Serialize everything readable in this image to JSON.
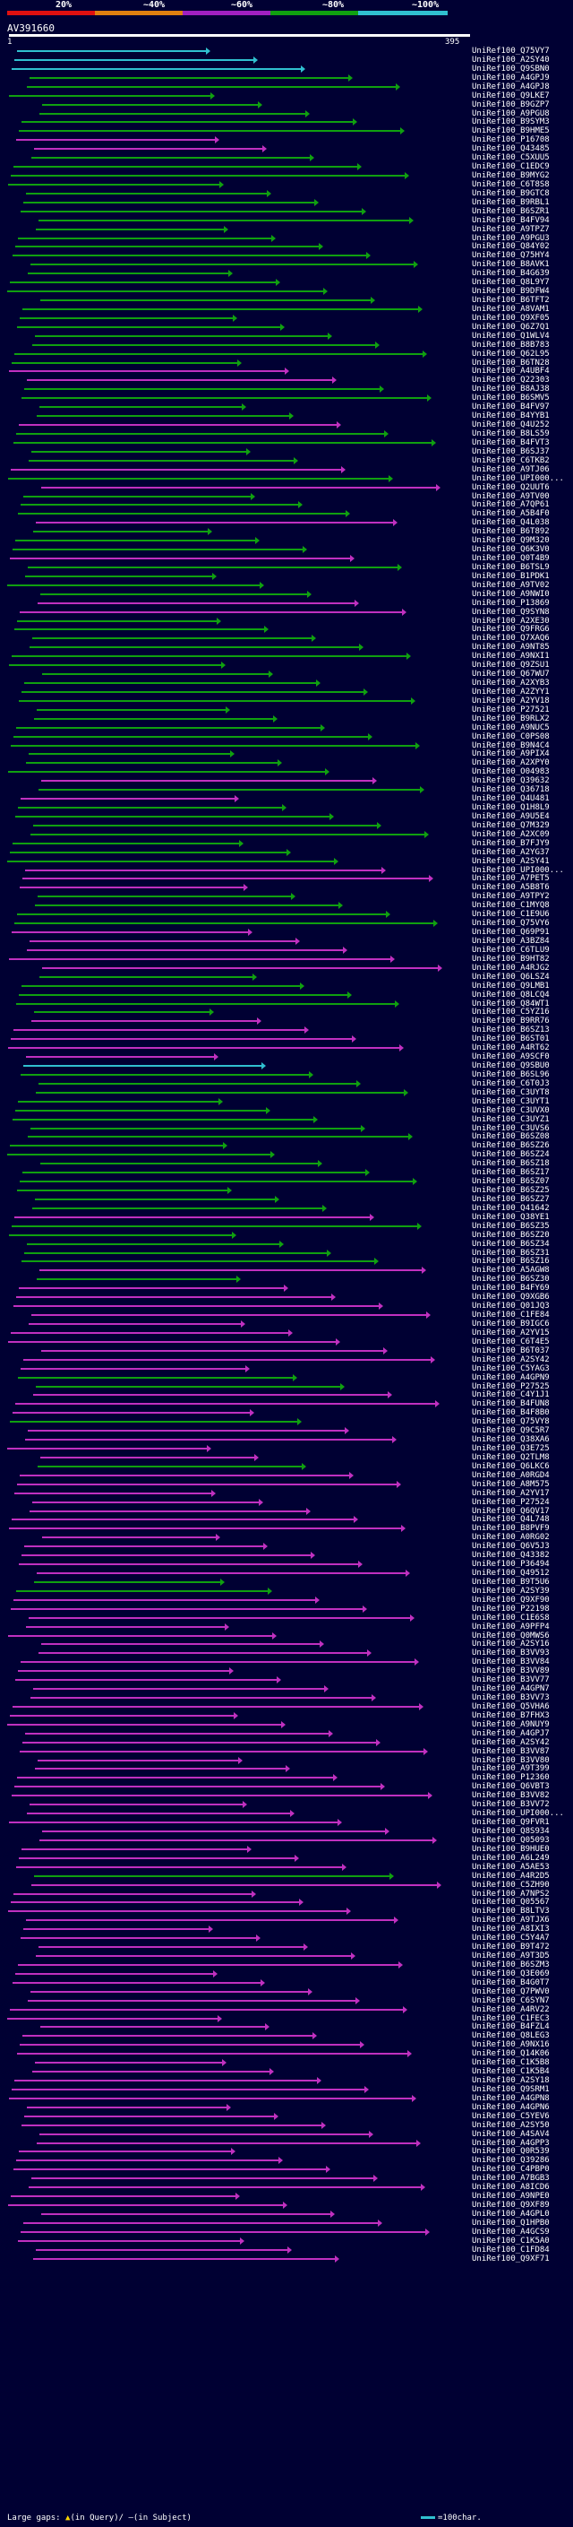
{
  "legend": {
    "labels": [
      "20%",
      "~40%",
      "~60%",
      "~80%",
      "~100%"
    ],
    "colors": [
      "#e01010",
      "#e08010",
      "#a020c0",
      "#10a010",
      "#30c0d0"
    ]
  },
  "query": {
    "id": "AV391660",
    "start": "1",
    "end": "395"
  },
  "hits": [
    {
      "label": "UniRef100_Q75VY7",
      "kind": "cyan"
    },
    {
      "label": "UniRef100_A2SY40",
      "kind": "cyan"
    },
    {
      "label": "UniRef100_Q9SBN0",
      "kind": "cyan"
    },
    {
      "label": "UniRef100_A4GPJ9",
      "kind": "green"
    },
    {
      "label": "UniRef100_A4GPJ8",
      "kind": "green"
    },
    {
      "label": "UniRef100_Q9LKE7",
      "kind": "green"
    },
    {
      "label": "UniRef100_B9GZP7",
      "kind": "green"
    },
    {
      "label": "UniRef100_A9PGU8",
      "kind": "green"
    },
    {
      "label": "UniRef100_B9SYM3",
      "kind": "green"
    },
    {
      "label": "UniRef100_B9HME5",
      "kind": "green"
    },
    {
      "label": "UniRef100_P16708",
      "kind": "magenta"
    },
    {
      "label": "UniRef100_Q43485",
      "kind": "magenta"
    },
    {
      "label": "UniRef100_C5XUU5",
      "kind": "green"
    },
    {
      "label": "UniRef100_C1EDC9",
      "kind": "green"
    },
    {
      "label": "UniRef100_B9MYG2",
      "kind": "green"
    },
    {
      "label": "UniRef100_C6T8S8",
      "kind": "green"
    },
    {
      "label": "UniRef100_B9GTC8",
      "kind": "green"
    },
    {
      "label": "UniRef100_B9RBL1",
      "kind": "green"
    },
    {
      "label": "UniRef100_B6SZR1",
      "kind": "green"
    },
    {
      "label": "UniRef100_B4FV94",
      "kind": "green"
    },
    {
      "label": "UniRef100_A9TPZ7",
      "kind": "green"
    },
    {
      "label": "UniRef100_A9PGU3",
      "kind": "green"
    },
    {
      "label": "UniRef100_Q84Y02",
      "kind": "green"
    },
    {
      "label": "UniRef100_Q75HY4",
      "kind": "green"
    },
    {
      "label": "UniRef100_B8AVK1",
      "kind": "green"
    },
    {
      "label": "UniRef100_B4G639",
      "kind": "green"
    },
    {
      "label": "UniRef100_Q8L9Y7",
      "kind": "green"
    },
    {
      "label": "UniRef100_B9DFW4",
      "kind": "green"
    },
    {
      "label": "UniRef100_B6TFT2",
      "kind": "green"
    },
    {
      "label": "UniRef100_A8VAM1",
      "kind": "green"
    },
    {
      "label": "UniRef100_Q9XF05",
      "kind": "green"
    },
    {
      "label": "UniRef100_Q6Z7Q1",
      "kind": "green"
    },
    {
      "label": "UniRef100_Q1WLV4",
      "kind": "green"
    },
    {
      "label": "UniRef100_B8B783",
      "kind": "green"
    },
    {
      "label": "UniRef100_Q62L95",
      "kind": "green"
    },
    {
      "label": "UniRef100_B6TN28",
      "kind": "green"
    },
    {
      "label": "UniRef100_A4UBF4",
      "kind": "magenta"
    },
    {
      "label": "UniRef100_Q22303",
      "kind": "magenta"
    },
    {
      "label": "UniRef100_B8AJ38",
      "kind": "green"
    },
    {
      "label": "UniRef100_B6SMV5",
      "kind": "green"
    },
    {
      "label": "UniRef100_B4FV97",
      "kind": "green"
    },
    {
      "label": "UniRef100_B4YYB1",
      "kind": "green"
    },
    {
      "label": "UniRef100_Q4U252",
      "kind": "magenta"
    },
    {
      "label": "UniRef100_B8LS59",
      "kind": "green"
    },
    {
      "label": "UniRef100_B4FVT3",
      "kind": "green"
    },
    {
      "label": "UniRef100_B6SJ37",
      "kind": "green"
    },
    {
      "label": "UniRef100_C6TKB2",
      "kind": "green"
    },
    {
      "label": "UniRef100_A9TJ06",
      "kind": "magenta"
    },
    {
      "label": "UniRef100_UPI000...",
      "kind": "green"
    },
    {
      "label": "UniRef100_Q2UUT6",
      "kind": "magenta"
    },
    {
      "label": "UniRef100_A9TV00",
      "kind": "green"
    },
    {
      "label": "UniRef100_A7QP61",
      "kind": "green"
    },
    {
      "label": "UniRef100_A5B4F0",
      "kind": "green"
    },
    {
      "label": "UniRef100_Q4L038",
      "kind": "magenta"
    },
    {
      "label": "UniRef100_B6T892",
      "kind": "green"
    },
    {
      "label": "UniRef100_Q9M320",
      "kind": "green"
    },
    {
      "label": "UniRef100_Q6K3V0",
      "kind": "green"
    },
    {
      "label": "UniRef100_Q0T4B9",
      "kind": "magenta"
    },
    {
      "label": "UniRef100_B6TSL9",
      "kind": "green"
    },
    {
      "label": "UniRef100_B1PDK1",
      "kind": "green"
    },
    {
      "label": "UniRef100_A9TV02",
      "kind": "green"
    },
    {
      "label": "UniRef100_A9NWI0",
      "kind": "green"
    },
    {
      "label": "UniRef100_P13869",
      "kind": "magenta"
    },
    {
      "label": "UniRef100_Q9SYN8",
      "kind": "magenta"
    },
    {
      "label": "UniRef100_A2XE30",
      "kind": "green"
    },
    {
      "label": "UniRef100_Q9FRG6",
      "kind": "green"
    },
    {
      "label": "UniRef100_Q7XAQ6",
      "kind": "green"
    },
    {
      "label": "UniRef100_A9NT85",
      "kind": "green"
    },
    {
      "label": "UniRef100_A9NXI1",
      "kind": "green"
    },
    {
      "label": "UniRef100_Q9ZSU1",
      "kind": "green"
    },
    {
      "label": "UniRef100_Q67WU7",
      "kind": "green"
    },
    {
      "label": "UniRef100_A2XYB3",
      "kind": "green"
    },
    {
      "label": "UniRef100_A2ZYY1",
      "kind": "green"
    },
    {
      "label": "UniRef100_A2YV18",
      "kind": "green"
    },
    {
      "label": "UniRef100_P27521",
      "kind": "green"
    },
    {
      "label": "UniRef100_B9RLX2",
      "kind": "green"
    },
    {
      "label": "UniRef100_A9NUC5",
      "kind": "green"
    },
    {
      "label": "UniRef100_C0PS08",
      "kind": "green"
    },
    {
      "label": "UniRef100_B9N4C4",
      "kind": "green"
    },
    {
      "label": "UniRef100_A9PIX4",
      "kind": "green"
    },
    {
      "label": "UniRef100_A2XPY0",
      "kind": "green"
    },
    {
      "label": "UniRef100_O04983",
      "kind": "green"
    },
    {
      "label": "UniRef100_Q39632",
      "kind": "magenta"
    },
    {
      "label": "UniRef100_Q36718",
      "kind": "green"
    },
    {
      "label": "UniRef100_Q4U481",
      "kind": "magenta"
    },
    {
      "label": "UniRef100_Q1H8L9",
      "kind": "green"
    },
    {
      "label": "UniRef100_A9U5E4",
      "kind": "green"
    },
    {
      "label": "UniRef100_Q7M329",
      "kind": "green"
    },
    {
      "label": "UniRef100_A2XC09",
      "kind": "green"
    },
    {
      "label": "UniRef100_B7FJY9",
      "kind": "green"
    },
    {
      "label": "UniRef100_A2YG37",
      "kind": "green"
    },
    {
      "label": "UniRef100_A2SY41",
      "kind": "green"
    },
    {
      "label": "UniRef100_UPI000...",
      "kind": "magenta"
    },
    {
      "label": "UniRef100_A7PET5",
      "kind": "magenta"
    },
    {
      "label": "UniRef100_A5B8T6",
      "kind": "magenta"
    },
    {
      "label": "UniRef100_A9TPY2",
      "kind": "green"
    },
    {
      "label": "UniRef100_C1MYQ8",
      "kind": "green"
    },
    {
      "label": "UniRef100_C1E9U6",
      "kind": "green"
    },
    {
      "label": "UniRef100_Q75VY6",
      "kind": "green"
    },
    {
      "label": "UniRef100_Q69P91",
      "kind": "magenta"
    },
    {
      "label": "UniRef100_A3BZ84",
      "kind": "magenta"
    },
    {
      "label": "UniRef100_C6TLU9",
      "kind": "magenta"
    },
    {
      "label": "UniRef100_B9HT82",
      "kind": "magenta"
    },
    {
      "label": "UniRef100_A4RJG2",
      "kind": "magenta"
    },
    {
      "label": "UniRef100_Q6LSZ4",
      "kind": "green"
    },
    {
      "label": "UniRef100_Q9LMB1",
      "kind": "green"
    },
    {
      "label": "UniRef100_Q8LCQ4",
      "kind": "green"
    },
    {
      "label": "UniRef100_Q84WT1",
      "kind": "green"
    },
    {
      "label": "UniRef100_C5YZ16",
      "kind": "green"
    },
    {
      "label": "UniRef100_B9RR76",
      "kind": "magenta"
    },
    {
      "label": "UniRef100_B6SZ13",
      "kind": "magenta"
    },
    {
      "label": "UniRef100_B6ST01",
      "kind": "magenta"
    },
    {
      "label": "UniRef100_A4RT62",
      "kind": "magenta"
    },
    {
      "label": "UniRef100_A9SCF0",
      "kind": "magenta"
    },
    {
      "label": "UniRef100_Q9SBU0",
      "kind": "cyan"
    },
    {
      "label": "UniRef100_B6SL96",
      "kind": "green"
    },
    {
      "label": "UniRef100_C6T0J3",
      "kind": "green"
    },
    {
      "label": "UniRef100_C3UYT8",
      "kind": "green"
    },
    {
      "label": "UniRef100_C3UYT1",
      "kind": "green"
    },
    {
      "label": "UniRef100_C3UVX0",
      "kind": "green"
    },
    {
      "label": "UniRef100_C3UYZ1",
      "kind": "green"
    },
    {
      "label": "UniRef100_C3UVS6",
      "kind": "green"
    },
    {
      "label": "UniRef100_B6SZ08",
      "kind": "green"
    },
    {
      "label": "UniRef100_B6SZ26",
      "kind": "green"
    },
    {
      "label": "UniRef100_B6SZ24",
      "kind": "green"
    },
    {
      "label": "UniRef100_B6SZ18",
      "kind": "green"
    },
    {
      "label": "UniRef100_B6SZ17",
      "kind": "green"
    },
    {
      "label": "UniRef100_B6SZ07",
      "kind": "green"
    },
    {
      "label": "UniRef100_B6SZ25",
      "kind": "green"
    },
    {
      "label": "UniRef100_B6SZ27",
      "kind": "green"
    },
    {
      "label": "UniRef100_Q41642",
      "kind": "green"
    },
    {
      "label": "UniRef100_Q38YE1",
      "kind": "magenta"
    },
    {
      "label": "UniRef100_B6SZ35",
      "kind": "green"
    },
    {
      "label": "UniRef100_B6SZ20",
      "kind": "green"
    },
    {
      "label": "UniRef100_B6SZ34",
      "kind": "green"
    },
    {
      "label": "UniRef100_B6SZ31",
      "kind": "green"
    },
    {
      "label": "UniRef100_B6SZ16",
      "kind": "green"
    },
    {
      "label": "UniRef100_A5AGW8",
      "kind": "magenta"
    },
    {
      "label": "UniRef100_B6SZ30",
      "kind": "green"
    },
    {
      "label": "UniRef100_B4FY69",
      "kind": "magenta"
    },
    {
      "label": "UniRef100_Q9XGB6",
      "kind": "magenta"
    },
    {
      "label": "UniRef100_Q01JQ3",
      "kind": "magenta"
    },
    {
      "label": "UniRef100_C1FE84",
      "kind": "magenta"
    },
    {
      "label": "UniRef100_B9IGC6",
      "kind": "magenta"
    },
    {
      "label": "UniRef100_A2YV15",
      "kind": "magenta"
    },
    {
      "label": "UniRef100_C6T4E5",
      "kind": "magenta"
    },
    {
      "label": "UniRef100_B6T037",
      "kind": "magenta"
    },
    {
      "label": "UniRef100_A2SY42",
      "kind": "magenta"
    },
    {
      "label": "UniRef100_C5YAG3",
      "kind": "magenta"
    },
    {
      "label": "UniRef100_A4GPN9",
      "kind": "green"
    },
    {
      "label": "UniRef100_P27525",
      "kind": "green"
    },
    {
      "label": "UniRef100_C4Y1J1",
      "kind": "magenta"
    },
    {
      "label": "UniRef100_B4FUN8",
      "kind": "magenta"
    },
    {
      "label": "UniRef100_B4F8B0",
      "kind": "magenta"
    },
    {
      "label": "UniRef100_Q75VY8",
      "kind": "green"
    },
    {
      "label": "UniRef100_Q9C5R7",
      "kind": "magenta"
    },
    {
      "label": "UniRef100_Q38XA6",
      "kind": "magenta"
    },
    {
      "label": "UniRef100_Q3E725",
      "kind": "magenta"
    },
    {
      "label": "UniRef100_Q2TLM8",
      "kind": "magenta"
    },
    {
      "label": "UniRef100_Q6LKC6",
      "kind": "green"
    },
    {
      "label": "UniRef100_A0RGD4",
      "kind": "magenta"
    },
    {
      "label": "UniRef100_A8M575",
      "kind": "magenta"
    },
    {
      "label": "UniRef100_A2YV17",
      "kind": "magenta"
    },
    {
      "label": "UniRef100_P27524",
      "kind": "magenta"
    },
    {
      "label": "UniRef100_Q6QV17",
      "kind": "magenta"
    },
    {
      "label": "UniRef100_Q4L748",
      "kind": "magenta"
    },
    {
      "label": "UniRef100_B8PVF9",
      "kind": "magenta"
    },
    {
      "label": "UniRef100_A0RG02",
      "kind": "magenta"
    },
    {
      "label": "UniRef100_Q6V5J3",
      "kind": "magenta"
    },
    {
      "label": "UniRef100_Q43382",
      "kind": "magenta"
    },
    {
      "label": "UniRef100_P36494",
      "kind": "magenta"
    },
    {
      "label": "UniRef100_Q49512",
      "kind": "magenta"
    },
    {
      "label": "UniRef100_B9T5U6",
      "kind": "green"
    },
    {
      "label": "UniRef100_A2SY39",
      "kind": "green"
    },
    {
      "label": "UniRef100_Q9XF90",
      "kind": "magenta"
    },
    {
      "label": "UniRef100_P22198",
      "kind": "magenta"
    },
    {
      "label": "UniRef100_C1E6S8",
      "kind": "magenta"
    },
    {
      "label": "UniRef100_A9PFP4",
      "kind": "magenta"
    },
    {
      "label": "UniRef100_Q0MWS6",
      "kind": "magenta"
    },
    {
      "label": "UniRef100_A2SY16",
      "kind": "magenta"
    },
    {
      "label": "UniRef100_B3VV93",
      "kind": "magenta"
    },
    {
      "label": "UniRef100_B3VV84",
      "kind": "magenta"
    },
    {
      "label": "UniRef100_B3VV89",
      "kind": "magenta"
    },
    {
      "label": "UniRef100_B3VV77",
      "kind": "magenta"
    },
    {
      "label": "UniRef100_A4GPN7",
      "kind": "magenta"
    },
    {
      "label": "UniRef100_B3VV73",
      "kind": "magenta"
    },
    {
      "label": "UniRef100_Q5VHA6",
      "kind": "magenta"
    },
    {
      "label": "UniRef100_B7FHX3",
      "kind": "magenta"
    },
    {
      "label": "UniRef100_A9NUY9",
      "kind": "magenta"
    },
    {
      "label": "UniRef100_A4GPJ7",
      "kind": "magenta"
    },
    {
      "label": "UniRef100_A2SY42",
      "kind": "magenta"
    },
    {
      "label": "UniRef100_B3VV87",
      "kind": "magenta"
    },
    {
      "label": "UniRef100_B3VV80",
      "kind": "magenta"
    },
    {
      "label": "UniRef100_A9T399",
      "kind": "magenta"
    },
    {
      "label": "UniRef100_P12360",
      "kind": "magenta"
    },
    {
      "label": "UniRef100_Q6VBT3",
      "kind": "magenta"
    },
    {
      "label": "UniRef100_B3VV82",
      "kind": "magenta"
    },
    {
      "label": "UniRef100_B3VV72",
      "kind": "magenta"
    },
    {
      "label": "UniRef100_UPI000...",
      "kind": "magenta"
    },
    {
      "label": "UniRef100_Q9FVR1",
      "kind": "magenta"
    },
    {
      "label": "UniRef100_Q8S934",
      "kind": "magenta"
    },
    {
      "label": "UniRef100_Q05093",
      "kind": "magenta"
    },
    {
      "label": "UniRef100_B9HUE0",
      "kind": "magenta"
    },
    {
      "label": "UniRef100_A6L249",
      "kind": "magenta"
    },
    {
      "label": "UniRef100_A5AE53",
      "kind": "magenta"
    },
    {
      "label": "UniRef100_A4R2D5",
      "kind": "green"
    },
    {
      "label": "UniRef100_C5ZH90",
      "kind": "magenta"
    },
    {
      "label": "UniRef100_A7NPS2",
      "kind": "magenta"
    },
    {
      "label": "UniRef100_Q05567",
      "kind": "magenta"
    },
    {
      "label": "UniRef100_B8LTV3",
      "kind": "magenta"
    },
    {
      "label": "UniRef100_A9TJX6",
      "kind": "magenta"
    },
    {
      "label": "UniRef100_A8IXI3",
      "kind": "magenta"
    },
    {
      "label": "UniRef100_C5Y4A7",
      "kind": "magenta"
    },
    {
      "label": "UniRef100_B9T472",
      "kind": "magenta"
    },
    {
      "label": "UniRef100_A9T3D5",
      "kind": "magenta"
    },
    {
      "label": "UniRef100_B6SZM3",
      "kind": "magenta"
    },
    {
      "label": "UniRef100_Q3E069",
      "kind": "magenta"
    },
    {
      "label": "UniRef100_B4G0T7",
      "kind": "magenta"
    },
    {
      "label": "UniRef100_Q7PWV0",
      "kind": "magenta"
    },
    {
      "label": "UniRef100_C6SYN7",
      "kind": "magenta"
    },
    {
      "label": "UniRef100_A4RV22",
      "kind": "magenta"
    },
    {
      "label": "UniRef100_C1FEC3",
      "kind": "magenta"
    },
    {
      "label": "UniRef100_B4FZL4",
      "kind": "magenta"
    },
    {
      "label": "UniRef100_Q8LEG3",
      "kind": "magenta"
    },
    {
      "label": "UniRef100_A9NX16",
      "kind": "magenta"
    },
    {
      "label": "UniRef100_Q14K06",
      "kind": "magenta"
    },
    {
      "label": "UniRef100_C1K5B8",
      "kind": "magenta"
    },
    {
      "label": "UniRef100_C1K5B4",
      "kind": "magenta"
    },
    {
      "label": "UniRef100_A2SY18",
      "kind": "magenta"
    },
    {
      "label": "UniRef100_Q9SRM1",
      "kind": "magenta"
    },
    {
      "label": "UniRef100_A4GPN8",
      "kind": "magenta"
    },
    {
      "label": "UniRef100_A4GPN6",
      "kind": "magenta"
    },
    {
      "label": "UniRef100_C5YEV6",
      "kind": "magenta"
    },
    {
      "label": "UniRef100_A2SY50",
      "kind": "magenta"
    },
    {
      "label": "UniRef100_A4SAV4",
      "kind": "magenta"
    },
    {
      "label": "UniRef100_A4GPP3",
      "kind": "magenta"
    },
    {
      "label": "UniRef100_Q0R539",
      "kind": "magenta"
    },
    {
      "label": "UniRef100_Q39286",
      "kind": "magenta"
    },
    {
      "label": "UniRef100_C4PBP0",
      "kind": "magenta"
    },
    {
      "label": "UniRef100_A7BGB3",
      "kind": "magenta"
    },
    {
      "label": "UniRef100_A8ICD6",
      "kind": "magenta"
    },
    {
      "label": "UniRef100_A9NPE0",
      "kind": "magenta"
    },
    {
      "label": "UniRef100_Q9XF89",
      "kind": "magenta"
    },
    {
      "label": "UniRef100_A4GPL0",
      "kind": "magenta"
    },
    {
      "label": "UniRef100_Q1HPB0",
      "kind": "magenta"
    },
    {
      "label": "UniRef100_A4GCS9",
      "kind": "magenta"
    },
    {
      "label": "UniRef100_C1K5A0",
      "kind": "magenta"
    },
    {
      "label": "UniRef100_C1FD84",
      "kind": "magenta"
    },
    {
      "label": "UniRef100_Q9XF71",
      "kind": "magenta"
    }
  ],
  "footer": {
    "large_gaps_label": "Large gaps:",
    "query_marker": "▲",
    "query_text": "(in Query)/",
    "subject_marker": "—",
    "subject_text": "(in Subject)",
    "scale_text": "=100char."
  }
}
